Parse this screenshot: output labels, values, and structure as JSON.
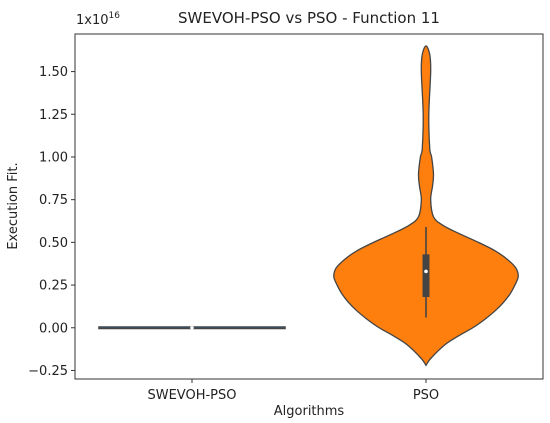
{
  "chart_data": {
    "type": "violin",
    "title": "SWEVOH-PSO vs PSO - Function 11",
    "xlabel": "Algorithms",
    "ylabel": "Execution Fit.",
    "y_multiplier_label": "1x10",
    "y_multiplier_exponent": "16",
    "y_scale": 1e+16,
    "ylim": [
      -0.3,
      1.72
    ],
    "y_ticks": [
      -0.25,
      0.0,
      0.25,
      0.5,
      0.75,
      1.0,
      1.25,
      1.5
    ],
    "y_tick_labels": [
      "−0.25",
      "0.00",
      "0.25",
      "0.50",
      "0.75",
      "1.00",
      "1.25",
      "1.50"
    ],
    "categories": [
      "SWEVOH-PSO",
      "PSO"
    ],
    "grid": false,
    "series": [
      {
        "category": "SWEVOH-PSO",
        "color": "#1f77b4",
        "profile": [
          [
            -0.003,
            0.0
          ],
          [
            0.0,
            0.995
          ],
          [
            0.003,
            0.0
          ]
        ],
        "box": {
          "q1": 0.0,
          "median": 0.0,
          "q3": 0.0,
          "whisker_low": 0.0,
          "whisker_high": 0.0
        }
      },
      {
        "category": "PSO",
        "color": "#ff7f0e",
        "profile": [
          [
            -0.22,
            0.0
          ],
          [
            -0.18,
            0.05
          ],
          [
            -0.1,
            0.2
          ],
          [
            -0.05,
            0.34
          ],
          [
            0.0,
            0.5
          ],
          [
            0.05,
            0.63
          ],
          [
            0.1,
            0.74
          ],
          [
            0.15,
            0.83
          ],
          [
            0.2,
            0.9
          ],
          [
            0.25,
            0.95
          ],
          [
            0.3,
            0.985
          ],
          [
            0.35,
            0.96
          ],
          [
            0.4,
            0.87
          ],
          [
            0.45,
            0.74
          ],
          [
            0.5,
            0.56
          ],
          [
            0.55,
            0.36
          ],
          [
            0.6,
            0.18
          ],
          [
            0.65,
            0.08
          ],
          [
            0.75,
            0.05
          ],
          [
            0.83,
            0.07
          ],
          [
            0.9,
            0.08
          ],
          [
            1.0,
            0.06
          ],
          [
            1.05,
            0.04
          ],
          [
            1.25,
            0.03
          ],
          [
            1.5,
            0.05
          ],
          [
            1.6,
            0.04
          ],
          [
            1.65,
            0.0
          ]
        ],
        "box": {
          "q1": 0.18,
          "median": 0.33,
          "q3": 0.43,
          "whisker_low": 0.06,
          "whisker_high": 0.59
        }
      }
    ]
  }
}
